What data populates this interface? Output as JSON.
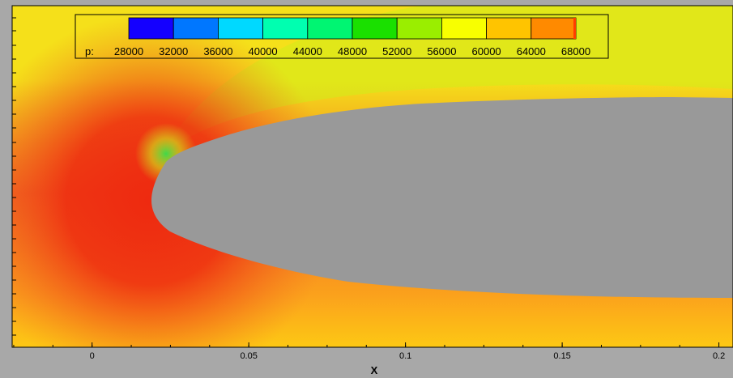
{
  "chart_data": {
    "type": "heatmap",
    "variable_label": "p:",
    "xlabel": "X",
    "x_ticks": [
      "0",
      "0.05",
      "0.1",
      "0.15",
      "0.2"
    ],
    "x_tick_values": [
      0,
      0.05,
      0.1,
      0.15,
      0.2
    ],
    "xlim": [
      -0.0255,
      0.2045
    ],
    "legend": {
      "placement": "top-center",
      "levels": [
        28000,
        32000,
        36000,
        40000,
        44000,
        48000,
        52000,
        56000,
        60000,
        64000,
        68000
      ],
      "labels": [
        "28000",
        "32000",
        "36000",
        "40000",
        "44000",
        "48000",
        "52000",
        "56000",
        "60000",
        "64000",
        "68000"
      ],
      "colors": [
        "#1400ff",
        "#0077ff",
        "#00d9ff",
        "#00ffb0",
        "#00f572",
        "#1ae000",
        "#9aee00",
        "#f8ff00",
        "#ffc400",
        "#ff8a00",
        "#ff3d00"
      ]
    },
    "field_colors": {
      "stagnation": "#ee2a10",
      "upstream": "#f06a22",
      "lower_surface": "#fba21c",
      "far_lower": "#fdc814",
      "upper_outer": "#f5e01a",
      "upper_surface": "#d0ec1a",
      "leading_edge_suction": "#40d84a",
      "body": "#999999"
    }
  }
}
